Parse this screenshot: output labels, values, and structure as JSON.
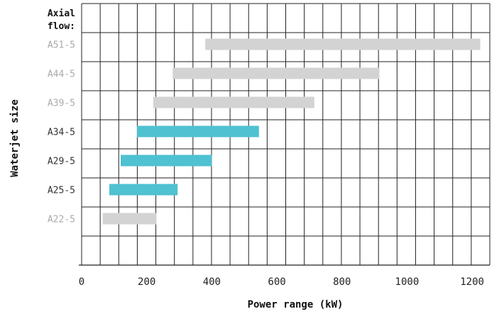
{
  "chart_data": {
    "type": "bar",
    "orientation": "horizontal-range",
    "title": "",
    "xlabel": "Power range (kW)",
    "ylabel": "Waterjet size",
    "header_label_line1": "Axial",
    "header_label_line2": "flow:",
    "xlim": [
      0,
      1260
    ],
    "x_ticks": [
      0,
      200,
      400,
      600,
      800,
      1000,
      1200
    ],
    "grid": true,
    "categories": [
      "A51-5",
      "A44-5",
      "A39-5",
      "A34-5",
      "A29-5",
      "A25-5",
      "A22-5"
    ],
    "ranges": [
      {
        "category": "A51-5",
        "min": 380,
        "max": 1225,
        "highlight": false
      },
      {
        "category": "A44-5",
        "min": 280,
        "max": 915,
        "highlight": false
      },
      {
        "category": "A39-5",
        "min": 220,
        "max": 715,
        "highlight": false
      },
      {
        "category": "A34-5",
        "min": 170,
        "max": 545,
        "highlight": true
      },
      {
        "category": "A29-5",
        "min": 120,
        "max": 400,
        "highlight": true
      },
      {
        "category": "A25-5",
        "min": 85,
        "max": 295,
        "highlight": true
      },
      {
        "category": "A22-5",
        "min": 65,
        "max": 230,
        "highlight": false
      }
    ],
    "colors": {
      "highlight": "#4fc1d1",
      "normal": "#d3d3d3",
      "highlight_label": "#333333",
      "normal_label": "#aaaaaa",
      "grid": "#222222"
    }
  }
}
